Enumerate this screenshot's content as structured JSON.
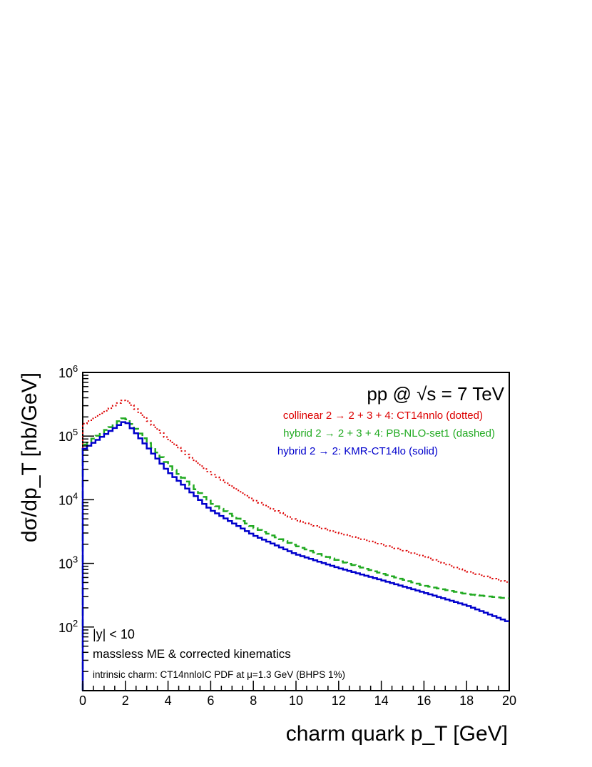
{
  "chart_data": {
    "type": "line",
    "title": "pp @ √s = 7 TeV",
    "xlabel": "charm quark p_T   [GeV]",
    "ylabel": "dσ/dp_T   [nb/GeV]",
    "xlim": [
      0,
      20
    ],
    "ylim": [
      10,
      1000000
    ],
    "yscale": "log",
    "grid": false,
    "legend_position": "top-right",
    "x_ticks": [
      "0",
      "2",
      "4",
      "6",
      "8",
      "10",
      "12",
      "14",
      "16",
      "18",
      "20"
    ],
    "y_ticks": [
      {
        "base": "10",
        "exp": "2",
        "value": 100
      },
      {
        "base": "10",
        "exp": "3",
        "value": 1000
      },
      {
        "base": "10",
        "exp": "4",
        "value": 10000
      },
      {
        "base": "10",
        "exp": "5",
        "value": 100000
      },
      {
        "base": "10",
        "exp": "6",
        "value": 1000000
      }
    ],
    "bin_width": 0.2,
    "series": [
      {
        "name": "collinear 2 → 2 + 3 + 4: CT14nnlo (dotted)",
        "color": "#dd0000",
        "style": "dotted",
        "x": [
          0,
          2,
          4,
          6,
          8,
          10,
          12,
          14,
          16,
          18,
          20
        ],
        "values": [
          150000,
          380000,
          90000,
          26000,
          10000,
          4800,
          3000,
          2000,
          1300,
          750,
          500
        ]
      },
      {
        "name": "hybrid 2 → 2 + 3 + 4: PB-NLO-set1 (dashed)",
        "color": "#22aa22",
        "style": "dashed",
        "x": [
          0,
          2,
          4,
          6,
          8,
          10,
          12,
          14,
          16,
          18,
          20
        ],
        "values": [
          70000,
          200000,
          36000,
          9000,
          3700,
          1900,
          1100,
          700,
          450,
          330,
          280
        ]
      },
      {
        "name": "hybrid 2 → 2: KMR-CT14lo (solid)",
        "color": "#0000cc",
        "style": "solid",
        "x": [
          0,
          2,
          4,
          6,
          8,
          10,
          12,
          14,
          16,
          18,
          20
        ],
        "values": [
          60000,
          175000,
          28000,
          7000,
          2800,
          1400,
          850,
          550,
          350,
          220,
          120
        ]
      }
    ],
    "annotations": [
      "|y| < 10",
      "massless ME & corrected kinematics",
      "intrinsic charm: CT14nnloIC PDF at μ=1.3 GeV (BHPS 1%)"
    ]
  }
}
